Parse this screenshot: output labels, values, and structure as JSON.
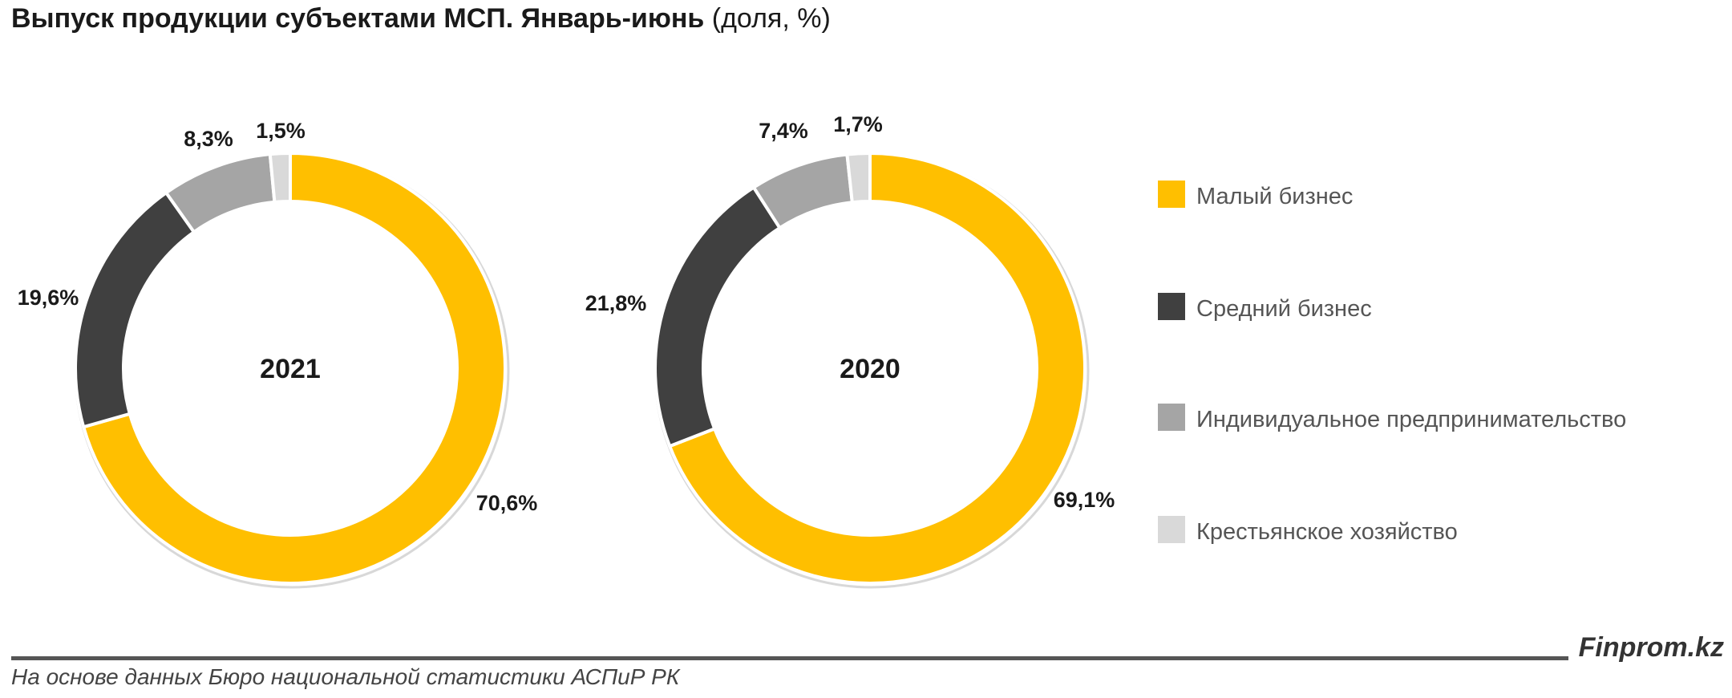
{
  "title": {
    "bold": "Выпуск продукции субъектами МСП. Январь-июнь",
    "normal": "(доля, %)"
  },
  "chart_data": {
    "type": "pie",
    "style": "donut",
    "categories": [
      "Малый бизнес",
      "Средний бизнес",
      "Индивидуальное предпринимательство",
      "Крестьянское хозяйство"
    ],
    "colors": [
      "#FFBF00",
      "#404040",
      "#A5A5A5",
      "#D9D9D9"
    ],
    "legend_placement": "right",
    "charts": [
      {
        "center_label": "2021",
        "values": [
          70.6,
          19.6,
          8.3,
          1.5
        ],
        "data_labels": [
          "70,6%",
          "19,6%",
          "8,3%",
          "1,5%"
        ]
      },
      {
        "center_label": "2020",
        "values": [
          69.1,
          21.8,
          7.4,
          1.7
        ],
        "data_labels": [
          "69,1%",
          "21,8%",
          "7,4%",
          "1,7%"
        ]
      }
    ]
  },
  "footer": {
    "brand": "Finprom.kz",
    "source": "На основе данных Бюро национальной статистики АСПиР РК"
  }
}
